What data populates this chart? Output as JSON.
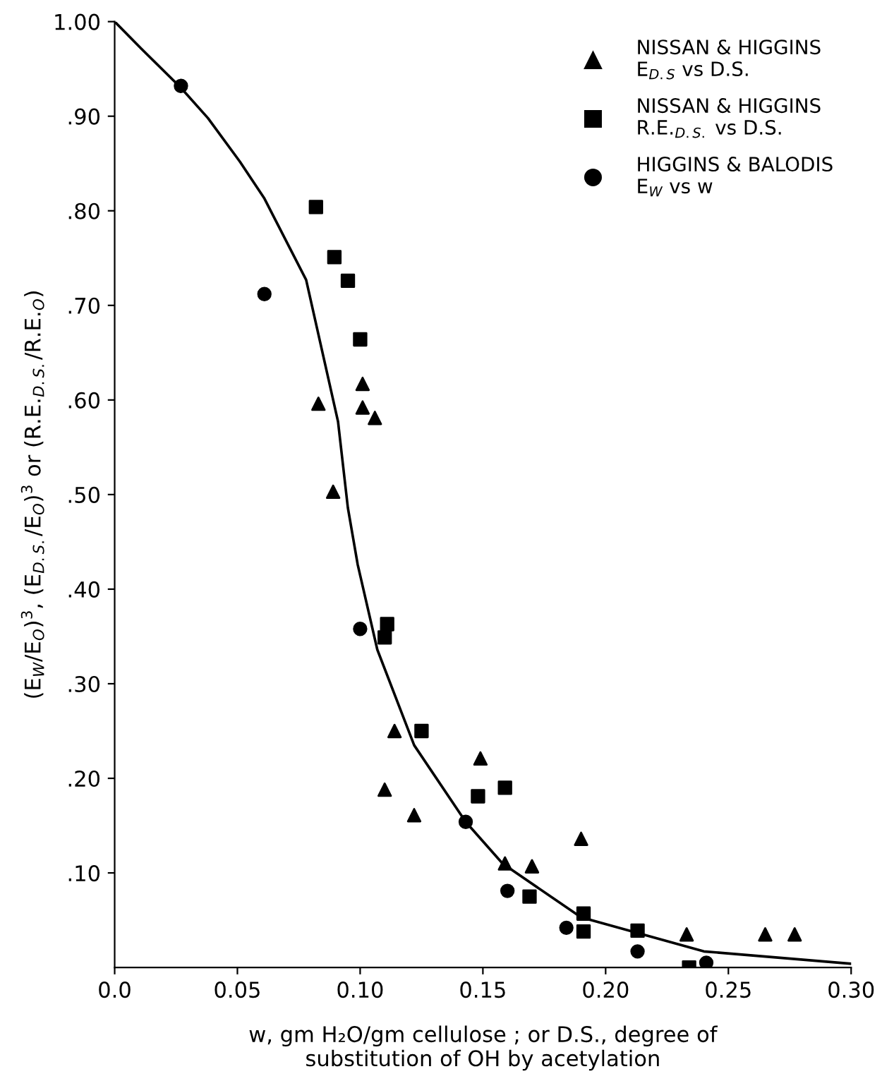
{
  "chart_data": {
    "type": "scatter",
    "xlabel": "w, gm H₂O/gm cellulose ; or D.S., degree of\nsubstitution of OH by acetylation",
    "ylabel": "(E$_{W}$/E$_{O}$)$^{3}$, (E$_{D.S.}$/E$_{O}$)$^{3}$ or (R.E.$_{D.S.}$/R.E.$_{O}$)",
    "xlim": [
      0,
      0.3
    ],
    "ylim": [
      0,
      1.0
    ],
    "xticks": [
      {
        "value": 0,
        "label": "0.0"
      },
      0.05,
      {
        "value": 0.1,
        "label": "0.10"
      },
      0.15,
      {
        "value": 0.2,
        "label": "0.20"
      },
      0.25,
      {
        "value": 0.3,
        "label": "0.30"
      }
    ],
    "yticks": [
      {
        "value": 0.1,
        "label": ".10"
      },
      {
        "value": 0.2,
        "label": ".20"
      },
      {
        "value": 0.3,
        "label": ".30"
      },
      {
        "value": 0.4,
        "label": ".40"
      },
      {
        "value": 0.5,
        "label": ".50"
      },
      {
        "value": 0.6,
        "label": ".60"
      },
      {
        "value": 0.7,
        "label": ".70"
      },
      {
        "value": 0.8,
        "label": ".80"
      },
      {
        "value": 0.9,
        "label": ".90"
      },
      {
        "value": 1.0,
        "label": "1.00"
      }
    ],
    "grid": false,
    "legend": "top right",
    "series": [
      {
        "name": "NISSAN & HIGGINS\nE$_{D.S}$ vs D.S.",
        "color": "#000000",
        "marker": "triangle",
        "x": [
          0.083,
          0.089,
          0.101,
          0.101,
          0.106,
          0.11,
          0.114,
          0.122,
          0.149,
          0.159,
          0.17,
          0.19,
          0.233,
          0.265,
          0.277
        ],
        "values": [
          0.596,
          0.503,
          0.617,
          0.592,
          0.581,
          0.188,
          0.25,
          0.161,
          0.221,
          0.11,
          0.107,
          0.136,
          0.035,
          0.035,
          0.035
        ]
      },
      {
        "name": "NISSAN & HIGGINS\nR.E.$_{D.S.}$ vs D.S.",
        "color": "#000000",
        "marker": "square",
        "x": [
          0.082,
          0.0895,
          0.095,
          0.1,
          0.111,
          0.11,
          0.125,
          0.148,
          0.159,
          0.169,
          0.191,
          0.191,
          0.213,
          0.234
        ],
        "values": [
          0.804,
          0.751,
          0.726,
          0.664,
          0.363,
          0.349,
          0.25,
          0.181,
          0.19,
          0.075,
          0.057,
          0.038,
          0.039,
          0.0
        ]
      },
      {
        "name": "HIGGINS & BALODIS\nE$_{W}$ vs w",
        "color": "#000000",
        "marker": "circle",
        "x": [
          0.027,
          0.061,
          0.1,
          0.143,
          0.16,
          0.184,
          0.213,
          0.241
        ],
        "values": [
          0.932,
          0.712,
          0.358,
          0.154,
          0.081,
          0.042,
          0.017,
          0.005
        ]
      },
      {
        "type": "line",
        "color": "#000000",
        "marker": "none",
        "line_style": "solid",
        "x": [
          0.0,
          0.011,
          0.027,
          0.038,
          0.051,
          0.061,
          0.078,
          0.091,
          0.095,
          0.099,
          0.107,
          0.122,
          0.143,
          0.158,
          0.19,
          0.24,
          0.3
        ],
        "values": [
          1.0,
          0.971,
          0.93,
          0.898,
          0.852,
          0.813,
          0.727,
          0.577,
          0.486,
          0.426,
          0.336,
          0.235,
          0.154,
          0.11,
          0.053,
          0.017,
          0.004
        ]
      }
    ]
  }
}
